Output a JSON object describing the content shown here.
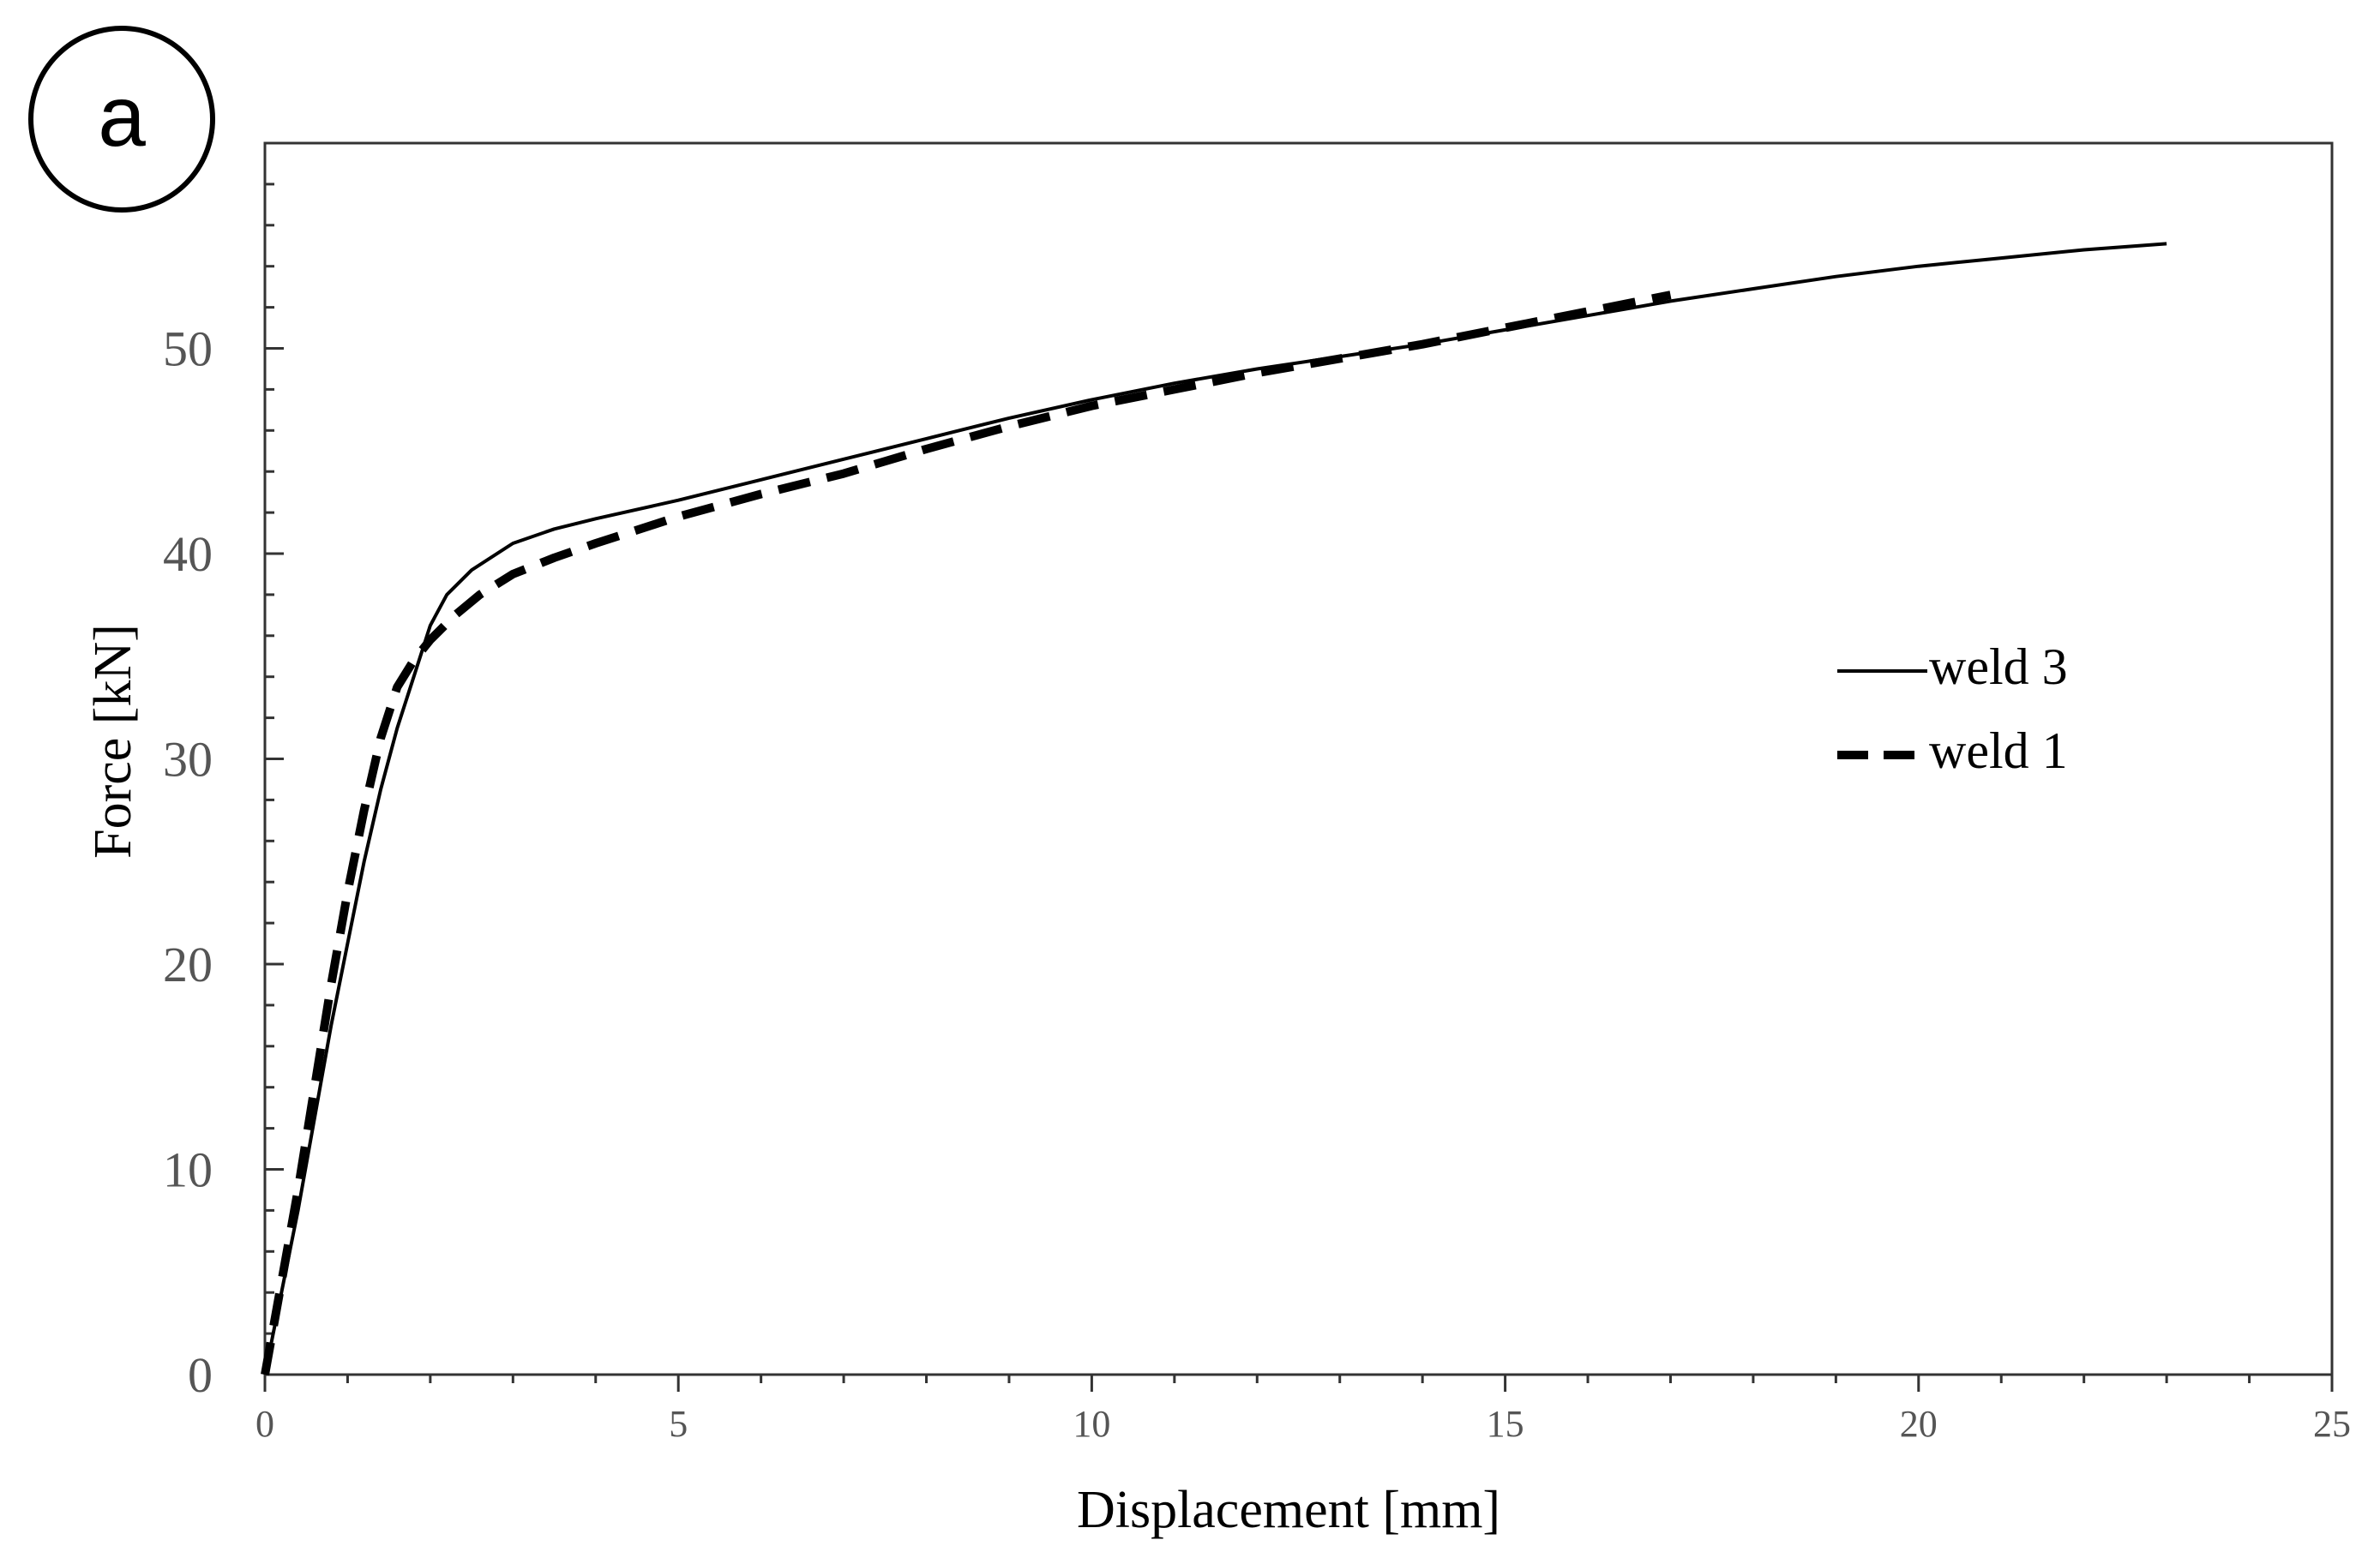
{
  "panel_label": "a",
  "chart_data": {
    "type": "line",
    "title": "",
    "xlabel": "Displacement [mm]",
    "ylabel": "Force [kN]",
    "xlim": [
      0,
      25
    ],
    "ylim": [
      0,
      60
    ],
    "x_ticks": [
      0,
      5,
      10,
      15,
      20,
      25
    ],
    "x_tick_labels": [
      "0",
      "5",
      "10",
      "15",
      "20",
      "25"
    ],
    "y_ticks": [
      0,
      10,
      20,
      30,
      40,
      50
    ],
    "y_tick_labels": [
      "0",
      "10",
      "20",
      "30",
      "40",
      "50"
    ],
    "x_minor_step": 1,
    "y_minor_step": 2,
    "grid": false,
    "legend_position": "right-middle",
    "series": [
      {
        "name": "weld 3",
        "style": "solid",
        "color": "#000000",
        "points": [
          [
            0,
            0
          ],
          [
            0.2,
            4
          ],
          [
            0.4,
            8
          ],
          [
            0.6,
            12.5
          ],
          [
            0.8,
            17
          ],
          [
            1.0,
            21
          ],
          [
            1.2,
            25
          ],
          [
            1.4,
            28.5
          ],
          [
            1.6,
            31.5
          ],
          [
            1.8,
            34
          ],
          [
            2.0,
            36.5
          ],
          [
            2.2,
            38
          ],
          [
            2.5,
            39.2
          ],
          [
            3.0,
            40.5
          ],
          [
            3.5,
            41.2
          ],
          [
            4.0,
            41.7
          ],
          [
            5.0,
            42.6
          ],
          [
            6.0,
            43.6
          ],
          [
            7.0,
            44.6
          ],
          [
            8.0,
            45.6
          ],
          [
            9.0,
            46.6
          ],
          [
            10.0,
            47.5
          ],
          [
            11.0,
            48.3
          ],
          [
            12.0,
            49.0
          ],
          [
            13.0,
            49.6
          ],
          [
            14.0,
            50.2
          ],
          [
            15.0,
            50.9
          ],
          [
            16.0,
            51.6
          ],
          [
            17.0,
            52.3
          ],
          [
            18.0,
            52.9
          ],
          [
            19.0,
            53.5
          ],
          [
            20.0,
            54.0
          ],
          [
            21.0,
            54.4
          ],
          [
            22.0,
            54.8
          ],
          [
            23.0,
            55.1
          ]
        ]
      },
      {
        "name": "weld 1",
        "style": "dashed",
        "color": "#000000",
        "points": [
          [
            0,
            0
          ],
          [
            0.2,
            4.5
          ],
          [
            0.4,
            9
          ],
          [
            0.6,
            14
          ],
          [
            0.8,
            19
          ],
          [
            1.0,
            23.5
          ],
          [
            1.2,
            27.5
          ],
          [
            1.4,
            31
          ],
          [
            1.6,
            33.5
          ],
          [
            1.8,
            34.8
          ],
          [
            2.0,
            35.8
          ],
          [
            2.3,
            37.0
          ],
          [
            2.6,
            38.0
          ],
          [
            3.0,
            39.0
          ],
          [
            3.5,
            39.8
          ],
          [
            4.0,
            40.5
          ],
          [
            5.0,
            41.8
          ],
          [
            6.0,
            42.9
          ],
          [
            7.0,
            43.9
          ],
          [
            8.0,
            45.1
          ],
          [
            9.0,
            46.2
          ],
          [
            10.0,
            47.2
          ],
          [
            11.0,
            48.0
          ],
          [
            12.0,
            48.8
          ],
          [
            13.0,
            49.5
          ],
          [
            14.0,
            50.2
          ],
          [
            15.0,
            51.0
          ],
          [
            16.0,
            51.8
          ],
          [
            17.0,
            52.6
          ]
        ]
      }
    ]
  }
}
